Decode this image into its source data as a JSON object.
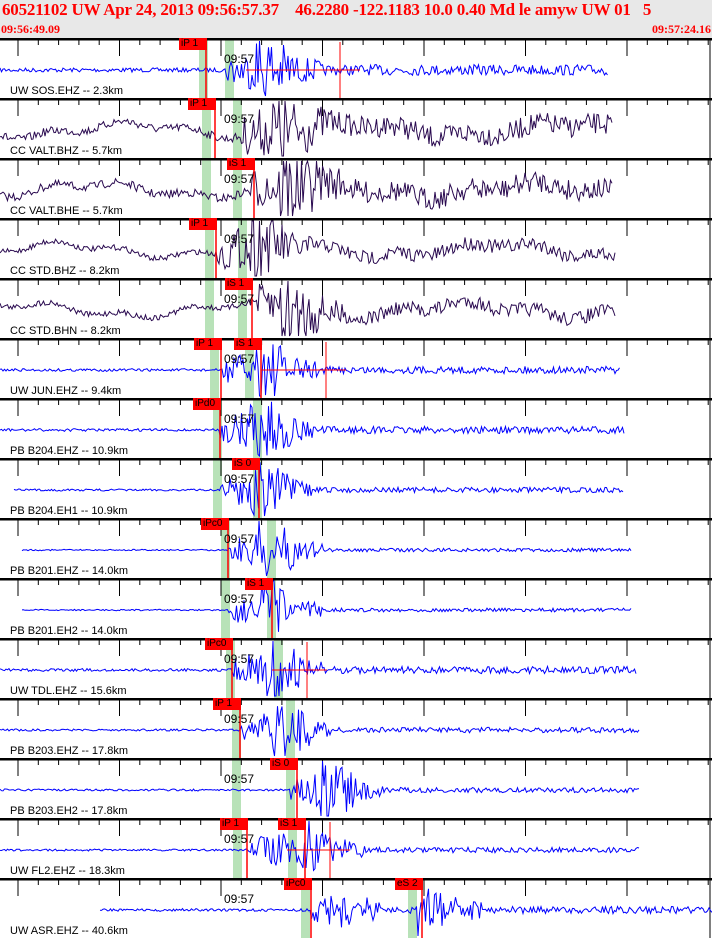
{
  "header": {
    "title": "60521102 UW Apr 24, 2013 09:56:57.37    46.2280 -122.1183 10.0 0.40 Md le amyw UW 01   5",
    "start_time": "09:56:49.09",
    "end_time": "09:57:24.16"
  },
  "colors": {
    "header_text": "#ff0000",
    "trace_blue": "#0000ff",
    "trace_dark": "#2a0a50",
    "pick": "#ff0000",
    "window": "#b8e2b8"
  },
  "time_label": "09:57",
  "rows": [
    {
      "station": "UW SOS.EHZ -- 2.3km",
      "picks": [
        "iP 1"
      ]
    },
    {
      "station": "CC VALT.BHZ -- 5.7km",
      "picks": [
        "iP 1"
      ]
    },
    {
      "station": "CC VALT.BHE -- 5.7km",
      "picks": [
        "iS 1"
      ]
    },
    {
      "station": "CC STD.BHZ -- 8.2km",
      "picks": [
        "iP 1"
      ]
    },
    {
      "station": "CC STD.BHN -- 8.2km",
      "picks": [
        "iS 1"
      ]
    },
    {
      "station": "UW JUN.EHZ -- 9.4km",
      "picks": [
        "iP 1",
        "iS 1"
      ]
    },
    {
      "station": "PB B204.EHZ -- 10.9km",
      "picks": [
        "iPd0"
      ]
    },
    {
      "station": "PB B204.EH1 -- 10.9km",
      "picks": [
        "iS 0"
      ]
    },
    {
      "station": "PB B201.EHZ -- 14.0km",
      "picks": [
        "iPc0"
      ]
    },
    {
      "station": "PB B201.EH2 -- 14.0km",
      "picks": [
        "iS 1"
      ]
    },
    {
      "station": "UW TDL.EHZ -- 15.6km",
      "picks": [
        "iPc0"
      ]
    },
    {
      "station": "PB B203.EHZ -- 17.8km",
      "picks": [
        "iP 1"
      ]
    },
    {
      "station": "PB B203.EH2 -- 17.8km",
      "picks": [
        "iS 0"
      ]
    },
    {
      "station": "UW FL2.EHZ -- 18.3km",
      "picks": [
        "iP 1",
        "iS 1"
      ]
    },
    {
      "station": "UW ASR.EHZ -- 40.6km",
      "picks": [
        "iPc0",
        "eS 2"
      ]
    }
  ]
}
